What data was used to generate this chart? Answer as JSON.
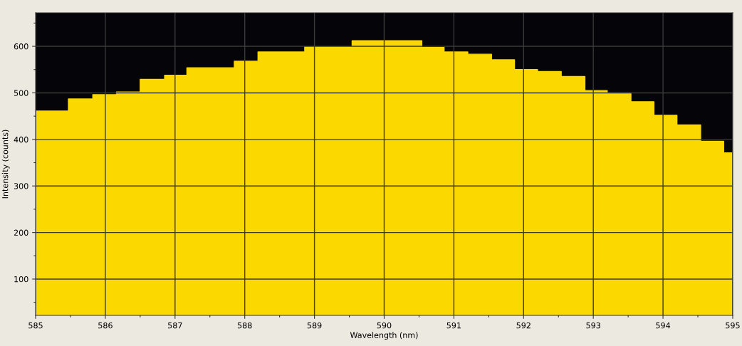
{
  "chart_data": {
    "type": "step",
    "xlabel": "Wavelength (nm)",
    "ylabel": "Intensity (counts)",
    "x": [
      585,
      585.47,
      585.82,
      586.16,
      586.5,
      586.85,
      587.17,
      587.85,
      588.19,
      588.86,
      589.54,
      590.54,
      590.86,
      591.2,
      591.54,
      591.87,
      592.2,
      592.54,
      592.88,
      593.2,
      593.54,
      593.87,
      594.2,
      594.54,
      594.87,
      595
    ],
    "values": [
      461,
      487,
      496,
      502,
      529,
      538,
      554,
      568,
      588,
      599,
      612,
      598,
      588,
      583,
      571,
      550,
      546,
      535,
      505,
      500,
      481,
      452,
      431,
      396,
      371,
      371
    ],
    "color": "#fbd800",
    "xlim": [
      585,
      595
    ],
    "ylim": [
      22,
      672
    ],
    "xticks": [
      585,
      586,
      587,
      588,
      589,
      590,
      591,
      592,
      593,
      594,
      595
    ],
    "yticks": [
      100,
      200,
      300,
      400,
      500,
      600
    ],
    "grid": true,
    "legend": false
  }
}
